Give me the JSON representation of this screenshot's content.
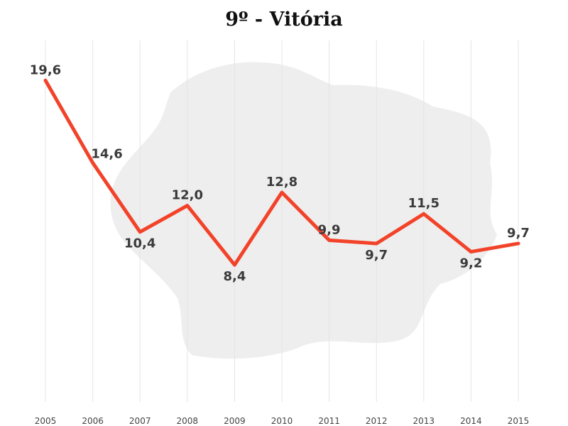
{
  "chart_data": {
    "type": "line",
    "title": "9º - Vitória",
    "xlabel": "",
    "ylabel": "",
    "x": [
      "2005",
      "2006",
      "2007",
      "2008",
      "2009",
      "2010",
      "2011",
      "2012",
      "2013",
      "2014",
      "2015"
    ],
    "values": [
      19.6,
      14.6,
      10.4,
      12.0,
      8.4,
      12.8,
      9.9,
      9.7,
      11.5,
      9.2,
      9.7
    ],
    "data_labels": [
      "19,6",
      "14,6",
      "10,4",
      "12,0",
      "8,4",
      "12,8",
      "9,9",
      "9,7",
      "11,5",
      "9,2",
      "9,7"
    ],
    "label_positions": [
      "above",
      "above-right",
      "below",
      "above",
      "below",
      "above",
      "above",
      "below",
      "above",
      "below",
      "above"
    ],
    "ylim": [
      0,
      20
    ],
    "grid": "vertical",
    "line_color": "#f2432a"
  }
}
